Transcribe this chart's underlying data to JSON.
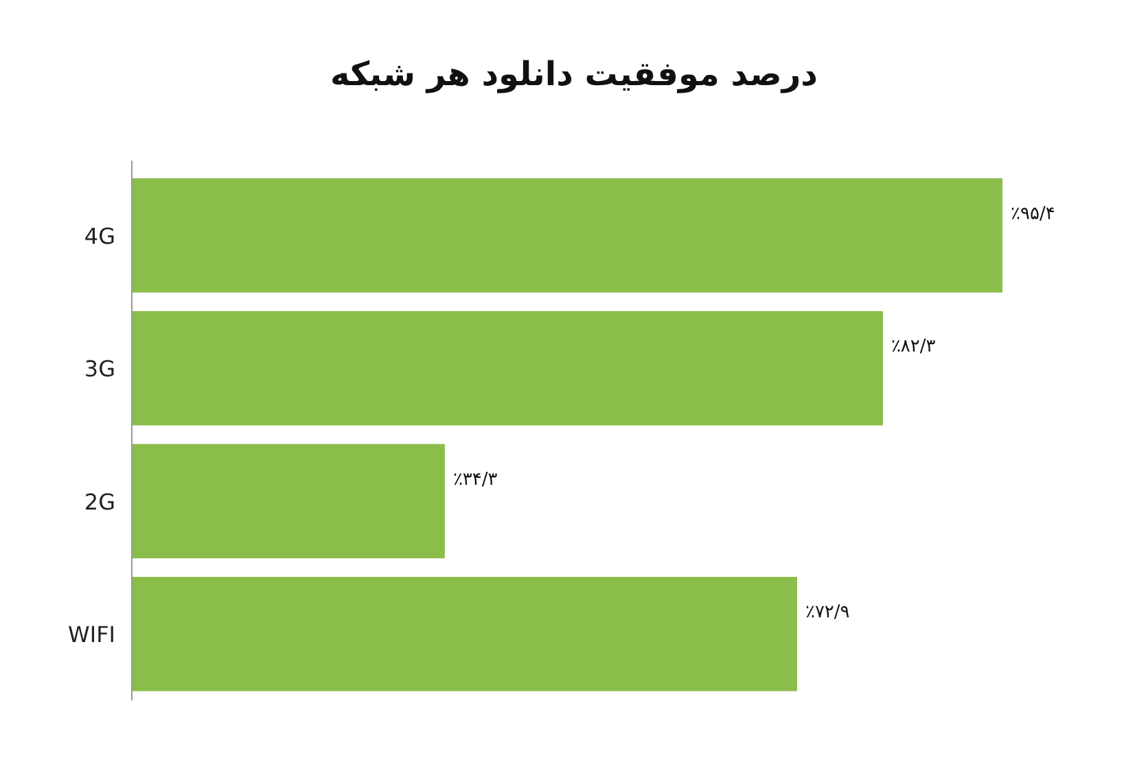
{
  "chart_data": {
    "type": "bar",
    "orientation": "horizontal",
    "title": "درصد موفقیت دانلود هر شبکه",
    "categories": [
      "4G",
      "3G",
      "2G",
      "WIFI"
    ],
    "values": [
      95.4,
      82.3,
      34.3,
      72.9
    ],
    "value_labels": [
      "٪۹۵/۴",
      "٪۸۲/۳",
      "٪۳۴/۳",
      "٪۷۲/۹"
    ],
    "color": "#8bbd4b"
  }
}
